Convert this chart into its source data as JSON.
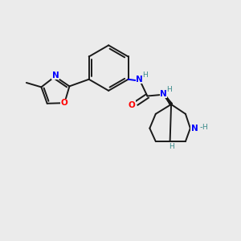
{
  "background_color": "#ebebeb",
  "bond_color": "#1a1a1a",
  "N_color": "#0000ff",
  "O_color": "#ff0000",
  "NH_color": "#3a8a8a",
  "figsize": [
    3.0,
    3.0
  ],
  "dpi": 100,
  "xlim": [
    0,
    10
  ],
  "ylim": [
    0,
    10
  ]
}
